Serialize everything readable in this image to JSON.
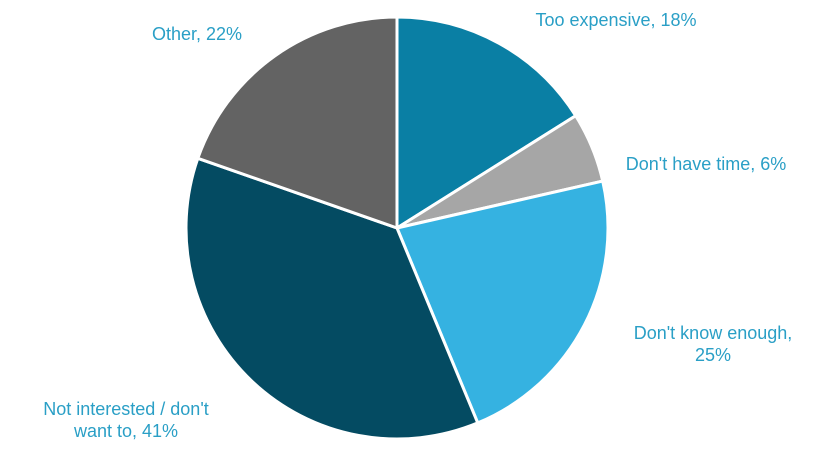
{
  "chart_data": {
    "type": "pie",
    "title": "",
    "start_angle_deg": 0,
    "direction": "clockwise",
    "slices": [
      {
        "label": "Too expensive",
        "value": 18,
        "value_label": "18%",
        "color": "#0a7fa4",
        "label_lines": [
          "Too expensive, 18%"
        ]
      },
      {
        "label": "Don't have time",
        "value": 6,
        "value_label": "6%",
        "color": "#a6a6a6",
        "label_lines": [
          "Don't have time, 6%"
        ]
      },
      {
        "label": "Don't know enough",
        "value": 25,
        "value_label": "25%",
        "color": "#35b2e1",
        "label_lines": [
          "Don't know enough,",
          "25%"
        ]
      },
      {
        "label": "Not interested / don't want to",
        "value": 41,
        "value_label": "41%",
        "color": "#044b62",
        "label_lines": [
          "Not interested / don't",
          "want to, 41%"
        ]
      },
      {
        "label": "Other",
        "value": 22,
        "value_label": "22%",
        "color": "#636363",
        "label_lines": [
          "Other, 22%"
        ]
      }
    ],
    "label_color": "#2a9fc6",
    "slice_border_color": "#ffffff"
  }
}
